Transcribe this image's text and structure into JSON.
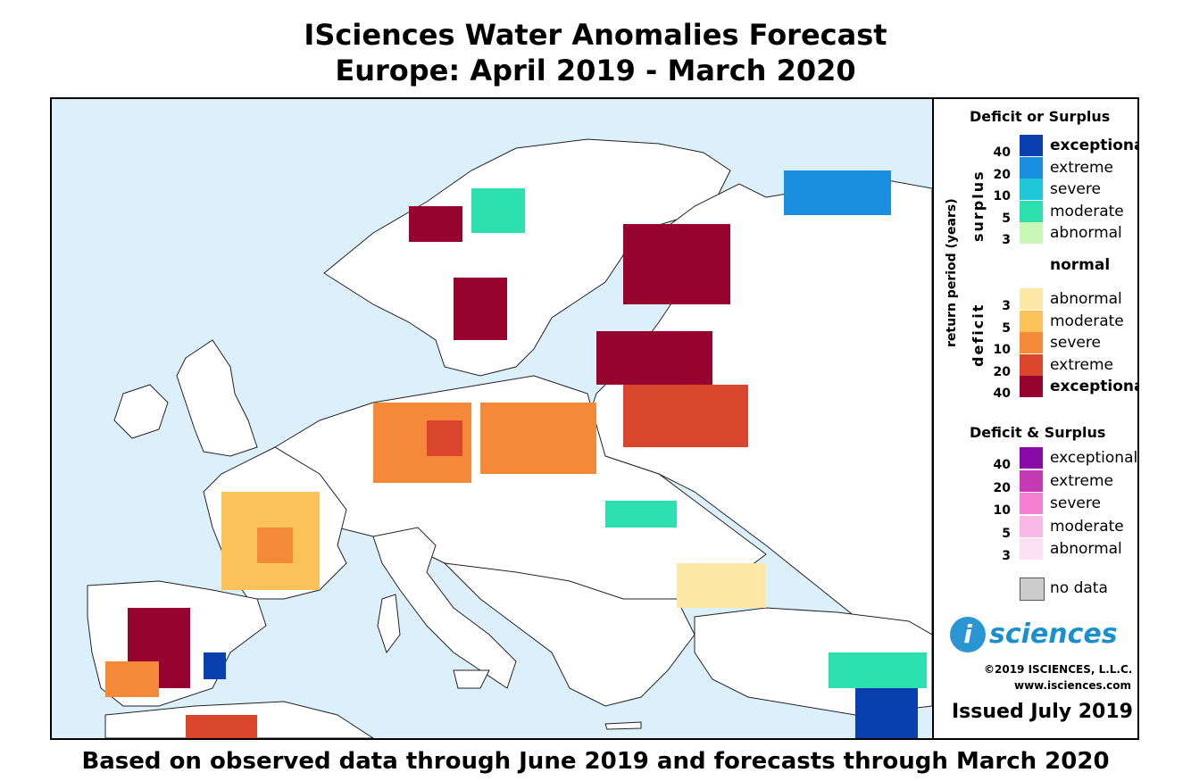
{
  "title_line1": "ISciences Water Anomalies Forecast",
  "title_line2": "Europe: April 2019 - March 2020",
  "footer": "Based on observed data through June 2019 and forecasts through March 2020",
  "legend": {
    "heading1": "Deficit or Surplus",
    "axis_label": "return period (years)",
    "surplus_label": "surplus",
    "deficit_label": "deficit",
    "surplus": [
      {
        "label": "exceptional",
        "color": "#0a3fae",
        "bold": true
      },
      {
        "label": "extreme",
        "color": "#1a8fe0",
        "bold": false
      },
      {
        "label": "severe",
        "color": "#1fc7d8",
        "bold": false
      },
      {
        "label": "moderate",
        "color": "#2de0b0",
        "bold": false
      },
      {
        "label": "abnormal",
        "color": "#c9f7b6",
        "bold": false
      }
    ],
    "surplus_nums": [
      "40",
      "20",
      "10",
      "5",
      "3"
    ],
    "normal": "normal",
    "deficit": [
      {
        "label": "abnormal",
        "color": "#fde8a8",
        "bold": false
      },
      {
        "label": "moderate",
        "color": "#fcc25a",
        "bold": false
      },
      {
        "label": "severe",
        "color": "#f5893a",
        "bold": false
      },
      {
        "label": "extreme",
        "color": "#d9462b",
        "bold": false
      },
      {
        "label": "exceptional",
        "color": "#96032e",
        "bold": true
      }
    ],
    "deficit_nums": [
      "3",
      "5",
      "10",
      "20",
      "40"
    ],
    "heading2": "Deficit & Surplus",
    "both": [
      {
        "label": "exceptional",
        "color": "#8a0aa8"
      },
      {
        "label": "extreme",
        "color": "#c73ab5"
      },
      {
        "label": "severe",
        "color": "#f47fd3"
      },
      {
        "label": "moderate",
        "color": "#f9b8e6"
      },
      {
        "label": "abnormal",
        "color": "#fde0f1"
      }
    ],
    "both_nums": [
      "40",
      "20",
      "10",
      "5",
      "3"
    ],
    "nodata": "no data",
    "nodata_color": "#cccccc"
  },
  "brand": {
    "logo_i": "i",
    "logo_text": "sciences",
    "copyright": "©2019 ISCIENCES, L.L.C.",
    "website": "www.isciences.com",
    "issued": "Issued July 2019"
  }
}
